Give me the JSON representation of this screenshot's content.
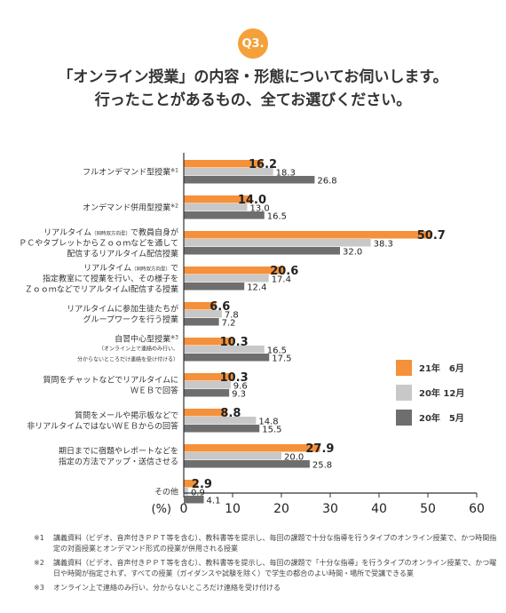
{
  "header": {
    "badge": "Q3.",
    "title_line1": "「オンライン授業」の内容・形態についてお伺いします。",
    "title_line2": "行ったことがあるもの、全てお選びください。"
  },
  "chart_data": {
    "type": "bar",
    "orientation": "horizontal",
    "categories": [
      {
        "lines": [
          "フルオンデマンド型授業"
        ],
        "sup": "※1",
        "small": []
      },
      {
        "lines": [
          "オンデマンド併用型授業"
        ],
        "sup": "※2",
        "small": []
      },
      {
        "lines": [
          "リアルタイム",
          "ＰＣやタブレットからＺｏｏｍなどを通して",
          "配信するリアルタイム配信授業"
        ],
        "line1_small": "（同時双方向型）",
        "line1_rest": "で教員自身が",
        "sup": "",
        "small": []
      },
      {
        "lines": [
          "リアルタイム",
          "指定教室にて授業を行い、その様子を",
          "ＺｏｏｍなどでリアルタイムI配信する授業"
        ],
        "line1_small": "（同時双方向型）",
        "line1_rest": "で",
        "sup": "",
        "small": []
      },
      {
        "lines": [
          "リアルタイムに参加生徒たちが",
          "グループワークを行う授業"
        ],
        "sup": "",
        "small": []
      },
      {
        "lines": [
          "自習中心型授業"
        ],
        "sup": "※3",
        "small": [
          "（オンライン上で連絡のみ行い、",
          "分からないところだけ連絡を受け付ける）"
        ]
      },
      {
        "lines": [
          "質問をチャットなどでリアルタイムに",
          "ＷＥＢで回答"
        ],
        "sup": "",
        "small": []
      },
      {
        "lines": [
          "質問をメールや掲示板などで",
          "非リアルタイムではないＷＥＢからの回答"
        ],
        "sup": "",
        "small": []
      },
      {
        "lines": [
          "期日までに宿題やレポートなどを",
          "指定の方法でアップ・送信させる"
        ],
        "sup": "",
        "small": []
      },
      {
        "lines": [
          "その他"
        ],
        "sup": "",
        "small": []
      }
    ],
    "series": [
      {
        "name": "21年　6月",
        "color": "#f4913a",
        "values": [
          16.2,
          14.0,
          50.7,
          20.6,
          6.6,
          10.3,
          10.3,
          8.8,
          27.9,
          2.9
        ]
      },
      {
        "name": "20年 12月",
        "color": "#c8c8c8",
        "values": [
          18.3,
          13.0,
          38.3,
          17.4,
          7.8,
          16.5,
          9.6,
          14.8,
          20.0,
          0.9
        ]
      },
      {
        "name": "20年　5月",
        "color": "#6e6e6e",
        "values": [
          26.8,
          16.5,
          32.0,
          12.4,
          7.2,
          17.5,
          9.3,
          15.5,
          25.8,
          4.1
        ]
      }
    ],
    "x_ticks": [
      "0",
      "10",
      "20",
      "30",
      "40",
      "50",
      "60"
    ],
    "x_unit": "(%)",
    "xlim": [
      0,
      60
    ]
  },
  "notes": [
    {
      "mark": "※1",
      "text": "講義資料（ビデオ、音声付きＰＰＴ等を含む）、教科書等を提示し、毎回の課題で十分な指導を行うタイプのオンライン授業で、かつ時間指定の対面授業とオンデマンド形式の授業が併用される授業"
    },
    {
      "mark": "※2",
      "text": "講義資料（ビデオ、音声付きＰＰＴ等を含む）、教科書等を提示し、毎回の課題で「十分な指導」を行うタイプのオンライン授業で、かつ曜日や時間が指定されず、すべての授業（ガイダンスや試験を除く）で学生の都合のよい時間・場所で受講できる業"
    },
    {
      "mark": "※3",
      "text": "オンライン上で連絡のみ行い、分からないところだけ連絡を受け付ける"
    }
  ]
}
